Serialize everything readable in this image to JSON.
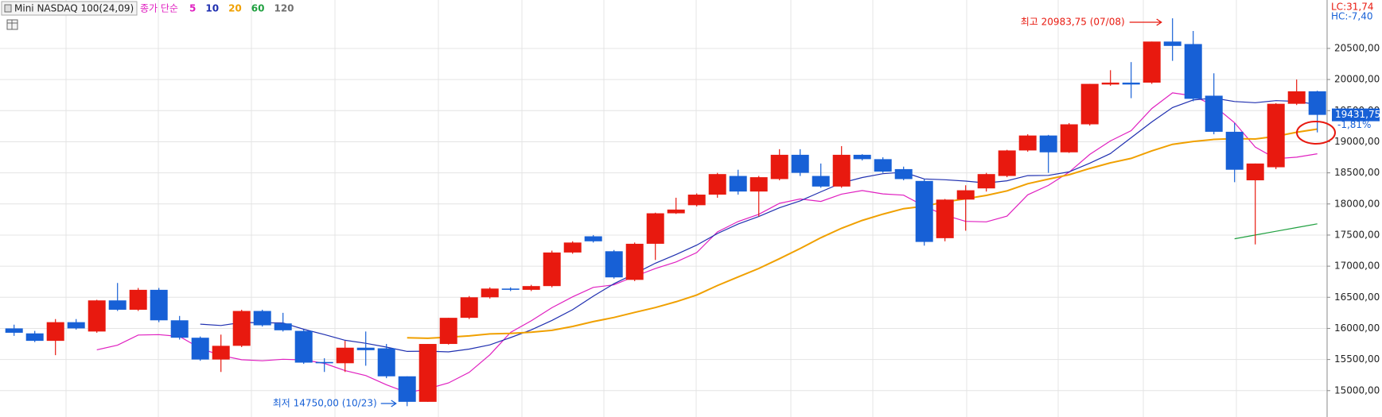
{
  "chart_data": {
    "type": "candlestick",
    "title": "Mini NASDAQ 100(24,09)",
    "legend_title": "종가 단순",
    "up_color": "#e8190f",
    "down_color": "#1760d6",
    "open": [
      16000,
      15920,
      15800,
      16100,
      15950,
      16450,
      16300,
      16620,
      16130,
      15850,
      15500,
      15720,
      16280,
      16080,
      15960,
      15460,
      15440,
      15690,
      15680,
      15230,
      14820,
      15750,
      16170,
      16500,
      16640,
      16620,
      16680,
      17220,
      17480,
      17240,
      16780,
      17360,
      17850,
      17980,
      18150,
      18450,
      18200,
      18400,
      18790,
      18450,
      18280,
      18790,
      18720,
      18560,
      18370,
      17450,
      18070,
      18250,
      18450,
      18860,
      19100,
      18830,
      19280,
      19920,
      19950,
      19950,
      20610,
      20570,
      19740,
      19160,
      18380,
      18590,
      19610,
      19810
    ],
    "high": [
      16060,
      15960,
      16150,
      16150,
      16460,
      16730,
      16650,
      16650,
      16200,
      15870,
      15900,
      16300,
      16300,
      16250,
      15980,
      15520,
      15800,
      15950,
      15750,
      15230,
      15750,
      16170,
      16520,
      16660,
      16660,
      16700,
      17250,
      17400,
      17500,
      17260,
      17380,
      17860,
      18100,
      18170,
      18500,
      18550,
      18450,
      18880,
      18880,
      18650,
      18930,
      18800,
      18750,
      18600,
      18400,
      18080,
      18300,
      18500,
      18870,
      19120,
      19110,
      19300,
      19930,
      20150,
      20280,
      20610,
      20983.75,
      20780,
      20100,
      19300,
      18650,
      19620,
      20000,
      19820
    ],
    "low": [
      15880,
      15780,
      15570,
      15980,
      15930,
      16280,
      16280,
      16100,
      15820,
      15480,
      15300,
      15700,
      16030,
      15950,
      15430,
      15300,
      15300,
      15400,
      15200,
      14750,
      14820,
      15740,
      16150,
      16480,
      16600,
      16600,
      16660,
      17200,
      17380,
      16800,
      16760,
      17100,
      17840,
      17960,
      18100,
      18150,
      17800,
      18380,
      18450,
      18260,
      18260,
      18700,
      18500,
      18380,
      17330,
      17400,
      17570,
      18200,
      18430,
      18840,
      18500,
      18820,
      19260,
      19900,
      19700,
      19930,
      20300,
      19650,
      19120,
      18350,
      17350,
      18560,
      19590,
      19150
    ],
    "close": [
      15930,
      15800,
      16100,
      16000,
      16450,
      16300,
      16620,
      16130,
      15850,
      15500,
      15720,
      16280,
      16050,
      15970,
      15450,
      15440,
      15690,
      15650,
      15230,
      14820,
      15750,
      16170,
      16500,
      16640,
      16620,
      16680,
      17220,
      17380,
      17400,
      16820,
      17360,
      17850,
      17910,
      18150,
      18480,
      18200,
      18430,
      18790,
      18500,
      18280,
      18790,
      18720,
      18520,
      18400,
      17390,
      18070,
      18220,
      18480,
      18860,
      19100,
      18830,
      19280,
      19930,
      19950,
      19920,
      20610,
      20540,
      19690,
      19160,
      18550,
      18650,
      19610,
      19810,
      19431.75
    ],
    "close_label": "19431,75",
    "change_label": "-1,81%",
    "lc_label": "LC:31,74",
    "hc_label": "HC:-7,40",
    "high_annotation": "최고 20983,75 (07/08)",
    "low_annotation": "최저 14750,00 (10/23)",
    "series": [
      {
        "name": "5",
        "color": "#e020c0",
        "values": [
          null,
          null,
          null,
          null,
          15656,
          15730,
          15894,
          15900,
          15870,
          15680,
          15564,
          15496,
          15480,
          15504,
          15494,
          15438,
          15322,
          15242,
          15094,
          14968,
          15030,
          15124,
          15294,
          15576,
          15936,
          16122,
          16332,
          16508,
          16660,
          16700,
          16836,
          16962,
          17068,
          17218,
          17550,
          17718,
          17834,
          18010,
          18080,
          18040,
          18158,
          18216,
          18162,
          18142,
          17964,
          17820,
          17720,
          17712,
          17804,
          18146,
          18298,
          18510,
          18796,
          19014,
          19178,
          19534,
          19786,
          19738,
          19580,
          19306,
          18914,
          18728,
          18752,
          18806
        ]
      },
      {
        "name": "10",
        "color": "#2030b0",
        "values": [
          null,
          null,
          null,
          null,
          null,
          null,
          null,
          null,
          null,
          16068,
          16047,
          16095,
          16090,
          16087,
          15987,
          15901,
          15809,
          15761,
          15699,
          15631,
          15634,
          15623,
          15668,
          15735,
          15852,
          15976,
          16128,
          16301,
          16518,
          16718,
          16879,
          17047,
          17188,
          17339,
          17525,
          17677,
          17798,
          17939,
          18049,
          18195,
          18338,
          18425,
          18486,
          18511,
          18402,
          18389,
          18368,
          18337,
          18373,
          18455,
          18459,
          18515,
          18656,
          18811,
          19064,
          19318,
          19550,
          19671,
          19701,
          19646,
          19628,
          19661,
          19649,
          19597
        ]
      },
      {
        "name": "20",
        "color": "#f0a000",
        "values": [
          null,
          null,
          null,
          null,
          null,
          null,
          null,
          null,
          null,
          null,
          null,
          null,
          null,
          null,
          null,
          null,
          null,
          null,
          null,
          15850,
          15841,
          15859,
          15879,
          15911,
          15920,
          15939,
          15969,
          16031,
          16109,
          16175,
          16257,
          16335,
          16428,
          16537,
          16689,
          16827,
          16963,
          17120,
          17284,
          17457,
          17609,
          17736,
          17837,
          17925,
          17964,
          18033,
          18083,
          18138,
          18211,
          18325,
          18399,
          18470,
          18571,
          18661,
          18733,
          18854,
          18959,
          19004,
          19037,
          19051,
          19044,
          19088,
          19153,
          19203
        ]
      },
      {
        "name": "60",
        "color": "#20a040",
        "values": [
          null,
          null,
          null,
          null,
          null,
          null,
          null,
          null,
          null,
          null,
          null,
          null,
          null,
          null,
          null,
          null,
          null,
          null,
          null,
          null,
          null,
          null,
          null,
          null,
          null,
          null,
          null,
          null,
          null,
          null,
          null,
          null,
          null,
          null,
          null,
          null,
          null,
          null,
          null,
          null,
          null,
          null,
          null,
          null,
          null,
          null,
          null,
          null,
          null,
          null,
          null,
          null,
          null,
          null,
          null,
          null,
          null,
          null,
          null,
          17440,
          17500,
          17560,
          17620,
          17680
        ]
      },
      {
        "name": "120",
        "color": "#707070",
        "values": [
          null,
          null,
          null,
          null,
          null,
          null,
          null,
          null,
          null,
          null,
          null,
          null,
          null,
          null,
          null,
          null,
          null,
          null,
          null,
          null,
          null,
          null,
          null,
          null,
          null,
          null,
          null,
          null,
          null,
          null,
          null,
          null,
          null,
          null,
          null,
          null,
          null,
          null,
          null,
          null,
          null,
          null,
          null,
          null,
          null,
          null,
          null,
          null,
          null,
          null,
          null,
          null,
          null,
          null,
          null,
          null,
          null,
          null,
          null,
          null,
          null,
          null,
          null,
          null
        ]
      }
    ],
    "ylim": [
      14576,
      21278
    ],
    "yticks": [
      {
        "value": 15000,
        "label": "15000,00"
      },
      {
        "value": 15500,
        "label": "15500,00"
      },
      {
        "value": 16000,
        "label": "16000,00"
      },
      {
        "value": 16500,
        "label": "16500,00"
      },
      {
        "value": 17000,
        "label": "17000,00"
      },
      {
        "value": 17500,
        "label": "17500,00"
      },
      {
        "value": 18000,
        "label": "18000,00"
      },
      {
        "value": 18500,
        "label": "18500,00"
      },
      {
        "value": 19000,
        "label": "19000,00"
      },
      {
        "value": 19500,
        "label": "19500,00"
      },
      {
        "value": 20000,
        "label": "20000,00"
      },
      {
        "value": 20500,
        "label": "20500,00"
      }
    ],
    "grid": true
  }
}
